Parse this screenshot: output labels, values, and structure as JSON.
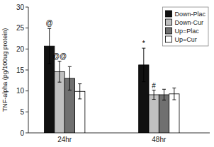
{
  "chart_data": {
    "type": "bar",
    "categories": [
      "24hr",
      "48hr"
    ],
    "series": [
      {
        "name": "Down-Plac",
        "color": "#111111",
        "values": [
          20.7,
          16.2
        ],
        "errors": [
          4.2,
          4.0
        ]
      },
      {
        "name": "Down-Cur",
        "color": "#c0c0c0",
        "values": [
          14.6,
          9.1
        ],
        "errors": [
          2.5,
          1.1
        ]
      },
      {
        "name": "Up=Plac",
        "color": "#707070",
        "values": [
          13.0,
          9.1
        ],
        "errors": [
          2.8,
          1.3
        ]
      },
      {
        "name": "Up=Cur",
        "color": "#ffffff",
        "values": [
          9.9,
          9.3
        ],
        "errors": [
          1.8,
          1.4
        ]
      }
    ],
    "ylabel": "TNF-alpha (pg/100ug protein)",
    "ylim": [
      0,
      30
    ],
    "yticks": [
      0,
      5,
      10,
      15,
      20,
      25,
      30
    ],
    "grid": false,
    "legend": "upper right",
    "annotations": [
      {
        "text": "@",
        "category": "24hr",
        "series": "Down-Plac",
        "y": 25.5
      },
      {
        "text": "@@",
        "category": "24hr",
        "series": "Down-Cur",
        "y": 17.5
      },
      {
        "text": "*",
        "category": "48hr",
        "series": "Down-Plac",
        "y": 20.5
      },
      {
        "text": "#",
        "category": "48hr",
        "series": "Down-Cur",
        "y": 10.5
      }
    ]
  }
}
